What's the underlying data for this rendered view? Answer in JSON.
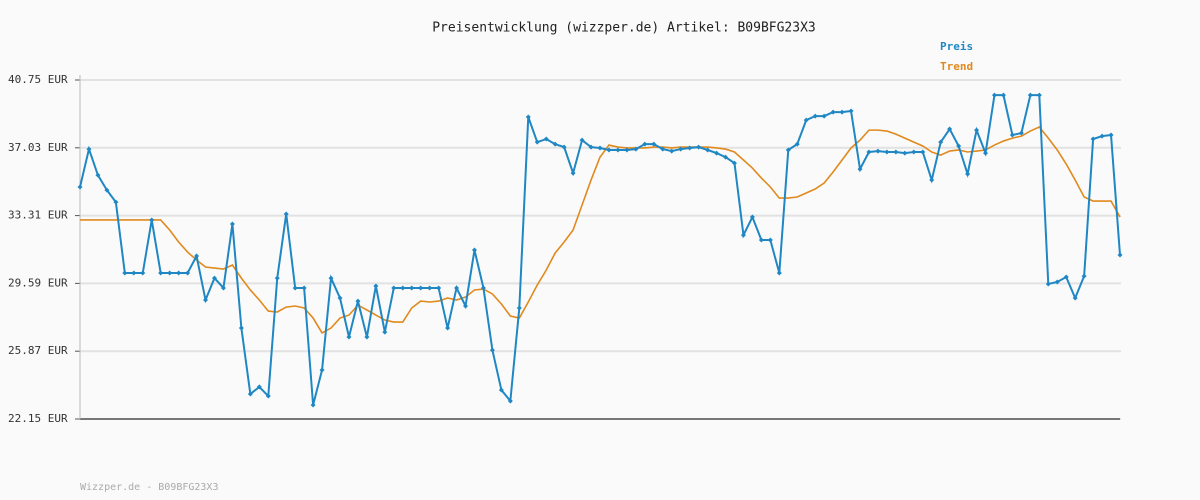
{
  "chart_data": {
    "type": "line",
    "title": "Preisentwicklung (wizzper.de) Artikel: B09BFG23X3",
    "footnote": "Wizzper.de - B09BFG23X3",
    "ylim": [
      22.15,
      40.75
    ],
    "yticks": [
      {
        "value": 22.15,
        "label": "22.15 EUR"
      },
      {
        "value": 25.87,
        "label": "25.87 EUR"
      },
      {
        "value": 29.59,
        "label": "29.59 EUR"
      },
      {
        "value": 33.31,
        "label": "33.31 EUR"
      },
      {
        "value": 37.03,
        "label": "37.03 EUR"
      },
      {
        "value": 40.75,
        "label": "40.75 EUR"
      }
    ],
    "grid": true,
    "legend": "top-right",
    "series": [
      {
        "name": "Preis",
        "color": "#1f87c4",
        "markers": true,
        "values": [
          34.88,
          36.96,
          35.53,
          34.71,
          34.05,
          30.16,
          30.16,
          30.16,
          33.07,
          30.16,
          30.16,
          30.16,
          30.16,
          31.09,
          28.68,
          29.88,
          29.34,
          32.85,
          27.14,
          23.52,
          23.91,
          23.41,
          29.88,
          33.4,
          29.34,
          29.34,
          22.92,
          24.84,
          29.88,
          28.79,
          26.65,
          28.62,
          26.65,
          29.45,
          26.92,
          29.34,
          29.34,
          29.34,
          29.34,
          29.34,
          29.34,
          27.14,
          29.34,
          28.35,
          31.42,
          29.34,
          25.93,
          23.74,
          23.14,
          28.24,
          38.72,
          37.34,
          37.51,
          37.23,
          37.07,
          35.64,
          37.45,
          37.07,
          37.02,
          36.91,
          36.91,
          36.91,
          36.96,
          37.23,
          37.23,
          36.96,
          36.85,
          36.96,
          37.02,
          37.07,
          36.91,
          36.74,
          36.52,
          36.19,
          32.24,
          33.23,
          31.97,
          31.97,
          30.16,
          36.91,
          37.23,
          38.55,
          38.77,
          38.77,
          38.99,
          38.99,
          39.05,
          35.86,
          36.8,
          36.85,
          36.8,
          36.8,
          36.74,
          36.8,
          36.8,
          35.26,
          37.34,
          38.06,
          37.13,
          35.59,
          38.0,
          36.74,
          39.92,
          39.92,
          37.73,
          37.84,
          39.92,
          39.92,
          29.56,
          29.67,
          29.94,
          28.79,
          29.99,
          37.51,
          37.67,
          37.73,
          31.15
        ]
      },
      {
        "name": "Trend",
        "color": "#e08a1e",
        "markers": false,
        "values": [
          33.07,
          33.07,
          33.07,
          33.07,
          33.07,
          33.07,
          33.07,
          33.07,
          33.07,
          33.07,
          32.52,
          31.86,
          31.31,
          30.87,
          30.49,
          30.43,
          30.38,
          30.6,
          29.88,
          29.23,
          28.68,
          28.07,
          28.02,
          28.29,
          28.35,
          28.24,
          27.69,
          26.87,
          27.14,
          27.69,
          27.85,
          28.4,
          28.13,
          27.85,
          27.58,
          27.47,
          27.47,
          28.24,
          28.62,
          28.57,
          28.62,
          28.79,
          28.68,
          28.84,
          29.23,
          29.28,
          29.01,
          28.46,
          27.8,
          27.69,
          28.57,
          29.5,
          30.32,
          31.26,
          31.86,
          32.52,
          33.89,
          35.26,
          36.52,
          37.18,
          37.07,
          37.02,
          37.02,
          37.02,
          37.07,
          37.07,
          37.02,
          37.07,
          37.07,
          37.07,
          37.07,
          37.02,
          36.96,
          36.8,
          36.36,
          35.92,
          35.37,
          34.88,
          34.27,
          34.27,
          34.33,
          34.55,
          34.77,
          35.1,
          35.7,
          36.36,
          37.02,
          37.45,
          38.0,
          38.0,
          37.95,
          37.78,
          37.56,
          37.34,
          37.13,
          36.8,
          36.63,
          36.85,
          36.91,
          36.8,
          36.85,
          36.91,
          37.18,
          37.4,
          37.56,
          37.67,
          37.95,
          38.17,
          37.56,
          36.91,
          36.14,
          35.26,
          34.33,
          34.11,
          34.11,
          34.11,
          33.23
        ]
      }
    ]
  }
}
